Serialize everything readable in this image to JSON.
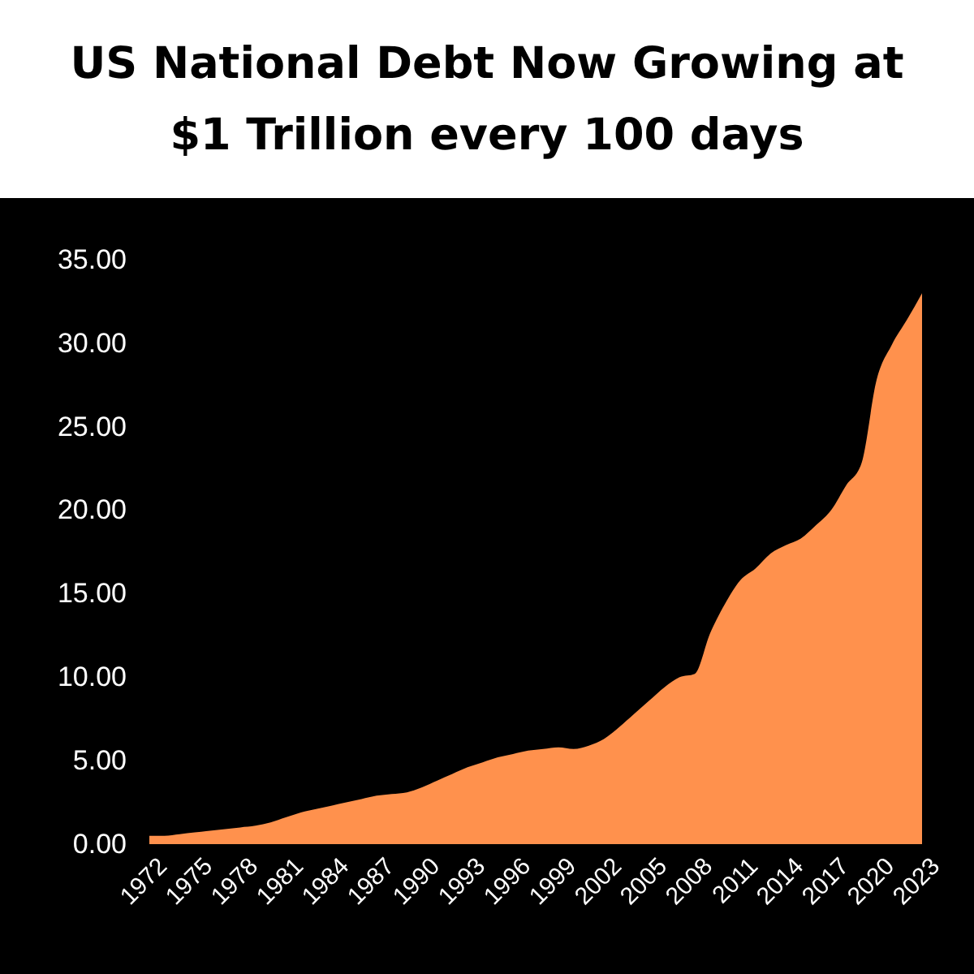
{
  "chart_data": {
    "type": "area",
    "title": "US National Debt Now Growing at $1 Trillion every 100 days",
    "x": [
      1972,
      1973,
      1974,
      1975,
      1976,
      1977,
      1978,
      1979,
      1980,
      1981,
      1982,
      1983,
      1984,
      1985,
      1986,
      1987,
      1988,
      1989,
      1990,
      1991,
      1992,
      1993,
      1994,
      1995,
      1996,
      1997,
      1998,
      1999,
      2000,
      2001,
      2002,
      2003,
      2004,
      2005,
      2006,
      2007,
      2008,
      2009,
      2010,
      2011,
      2012,
      2013,
      2014,
      2015,
      2016,
      2017,
      2018,
      2019,
      2020,
      2021,
      2022,
      2023
    ],
    "series": [
      {
        "color": "#ff914d",
        "values": [
          0.5,
          0.5,
          0.6,
          0.7,
          0.8,
          0.9,
          1.0,
          1.1,
          1.3,
          1.6,
          1.9,
          2.1,
          2.3,
          2.5,
          2.7,
          2.9,
          3.0,
          3.1,
          3.4,
          3.8,
          4.2,
          4.6,
          4.9,
          5.2,
          5.4,
          5.6,
          5.7,
          5.8,
          5.7,
          5.9,
          6.3,
          7.0,
          7.8,
          8.6,
          9.4,
          10.0,
          10.2,
          12.6,
          14.4,
          15.8,
          16.5,
          17.4,
          17.9,
          18.3,
          19.1,
          20.0,
          21.5,
          22.8,
          27.8,
          29.9,
          31.4,
          33.0
        ]
      }
    ],
    "xlim": [
      1972,
      2023
    ],
    "xticks": [
      1972,
      1975,
      1978,
      1981,
      1984,
      1987,
      1990,
      1993,
      1996,
      1999,
      2002,
      2005,
      2008,
      2011,
      2014,
      2017,
      2020,
      2023
    ],
    "ylim": [
      0,
      35
    ],
    "yticks": [
      {
        "value": 0,
        "label": "0.00"
      },
      {
        "value": 5,
        "label": "5.00"
      },
      {
        "value": 10,
        "label": "10.00"
      },
      {
        "value": 15,
        "label": "15.00"
      },
      {
        "value": 20,
        "label": "20.00"
      },
      {
        "value": 25,
        "label": "25.00"
      },
      {
        "value": 30,
        "label": "30.00"
      },
      {
        "value": 35,
        "label": "35.00"
      }
    ],
    "grid": false
  }
}
